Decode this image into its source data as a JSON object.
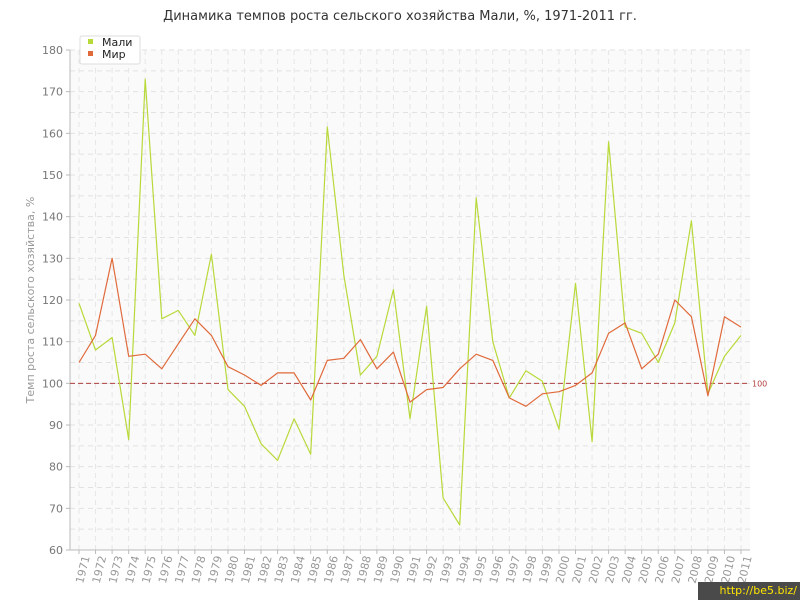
{
  "chart_data": {
    "type": "line",
    "title": "Динамика темпов роста сельского хозяйства Мали, %, 1971-2011 гг.",
    "ylabel": "Темп роста сельского хозяйства, %",
    "xlabel": "",
    "ylim": [
      60,
      180
    ],
    "yticks": [
      60,
      70,
      80,
      90,
      100,
      110,
      120,
      130,
      140,
      150,
      160,
      170,
      180
    ],
    "grid": true,
    "legend_position": "top-left",
    "x": [
      "1971",
      "1972",
      "1973",
      "1974",
      "1975",
      "1976",
      "1977",
      "1978",
      "1979",
      "1980",
      "1981",
      "1982",
      "1983",
      "1984",
      "1985",
      "1986",
      "1987",
      "1988",
      "1989",
      "1990",
      "1991",
      "1992",
      "1993",
      "1994",
      "1995",
      "1996",
      "1997",
      "1998",
      "1999",
      "2000",
      "2001",
      "2002",
      "2003",
      "2004",
      "2005",
      "2006",
      "2007",
      "2008",
      "2009",
      "2010",
      "2011"
    ],
    "series": [
      {
        "name": "Мали",
        "color": "#b8d93a",
        "values": [
          119.2,
          108,
          111,
          86.5,
          173,
          115.5,
          117.5,
          111.5,
          131,
          98.5,
          94.5,
          85.5,
          81.5,
          91.5,
          83,
          161.5,
          126,
          102,
          106.5,
          122.5,
          91.5,
          118.5,
          72.5,
          66,
          144.5,
          110,
          96.5,
          103,
          100.5,
          89,
          124,
          86,
          158,
          113.5,
          112,
          105,
          114.5,
          139,
          97.5,
          106.5,
          111.5
        ]
      },
      {
        "name": "Мир",
        "color": "#e06a3b",
        "values": [
          105,
          111.5,
          130,
          106.5,
          107,
          103.5,
          109.5,
          115.5,
          111.5,
          104,
          102,
          99.5,
          102.5,
          102.5,
          96,
          105.5,
          106,
          110.5,
          103.5,
          107.5,
          95.5,
          98.5,
          99,
          103.5,
          107,
          105.5,
          96.5,
          94.5,
          97.5,
          98,
          99.5,
          102.5,
          112,
          114.5,
          103.5,
          107,
          120,
          116,
          97,
          116,
          113.5
        ]
      }
    ],
    "reference_line": {
      "value": 100,
      "label": "100",
      "color": "#b04040"
    }
  },
  "watermark": "http://be5.biz/"
}
